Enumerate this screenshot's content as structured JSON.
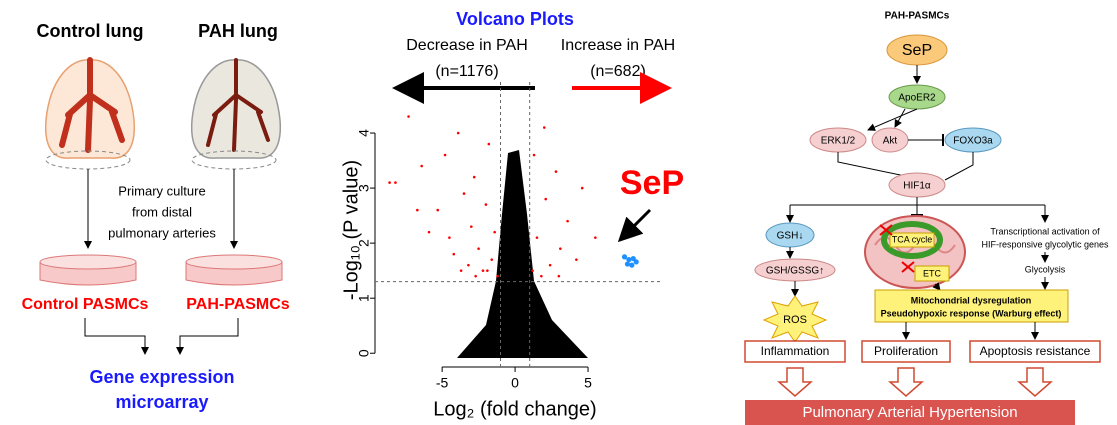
{
  "left_panel": {
    "control_lung": "Control lung",
    "pah_lung": "PAH lung",
    "culture": [
      "Primary culture",
      "from distal",
      "pulmonary arteries"
    ],
    "control_cells": "Control PASMCs",
    "pah_cells": "PAH-PASMCs",
    "output": [
      "Gene expression",
      "microarray"
    ]
  },
  "chart_data": {
    "type": "scatter",
    "title": "Volcano Plots",
    "x_label": "Log₂ (fold change)",
    "y_label": "-Log₁₀ (P value)",
    "annotations": {
      "decrease": "Decrease in PAH",
      "decrease_n": "(n=1176)",
      "increase": "Increase in PAH",
      "increase_n": "(n=682)",
      "highlight": "SeP"
    },
    "xlim": [
      -9.6,
      10
    ],
    "ylim": [
      -0.25,
      4.6
    ],
    "xticks": [
      -5,
      0,
      5
    ],
    "yticks": [
      0,
      1,
      2,
      3,
      4
    ],
    "vlines": [
      -1,
      1
    ],
    "hline": 1.3,
    "series": [
      {
        "color": "#ff0000",
        "x": [
          -8.6,
          -8.2,
          -7.3,
          -6.7,
          -6.4,
          -5.9,
          -5.3,
          -4.8,
          -4.5,
          -4.2,
          -3.9,
          -3.5,
          -3.2,
          -3,
          -2.8,
          -2.5,
          -2.2,
          -2,
          -1.8,
          -1.6,
          -1.4,
          -1.2,
          -3.7,
          -2.7,
          -1.9,
          1.2,
          1.5,
          1.8,
          2.1,
          2.4,
          2.8,
          3.1,
          3.6,
          4.2,
          4.6,
          5.5,
          1.3,
          2,
          3
        ],
        "values": [
          3.1,
          3.1,
          4.3,
          2.6,
          3.4,
          2.2,
          2.6,
          3.6,
          2.1,
          1.8,
          4,
          2.9,
          1.6,
          2.3,
          3.2,
          1.9,
          1.5,
          2.7,
          3.8,
          1.7,
          2.2,
          1.4,
          1.5,
          1.4,
          1.5,
          1.5,
          2.1,
          1.4,
          2.8,
          1.6,
          3.3,
          1.9,
          2.4,
          1.7,
          3,
          2.1,
          3.6,
          4.1,
          1.4
        ]
      },
      {
        "color": "#1e90ff",
        "x": [
          7.5,
          7.8,
          8.1,
          7.7,
          8,
          8.3
        ],
        "values": [
          1.75,
          1.7,
          1.72,
          1.62,
          1.6,
          1.66
        ]
      }
    ]
  },
  "right_panel": {
    "title": "PAH-PASMCs",
    "sep": "SeP",
    "receptor": "ApoER2",
    "erk": "ERK1/2",
    "akt": "Akt",
    "foxo": "FOXO3a",
    "hif": "HIF1α",
    "gsh": "GSH↓",
    "gsh_ratio": "GSH/GSSG↑",
    "ros": "ROS",
    "tca": "TCA cycle",
    "etc": "ETC",
    "transcription": [
      "Transcriptional activation of",
      "HIF-responsive glycolytic genes"
    ],
    "glycolysis": "Glycolysis",
    "mito": [
      "Mitochondrial dysregulation",
      "Pseudohypoxic response (Warburg effect)"
    ],
    "outcomes": [
      "Inflammation",
      "Proliferation",
      "Apoptosis resistance"
    ],
    "disease": "Pulmonary Arterial Hypertension"
  }
}
